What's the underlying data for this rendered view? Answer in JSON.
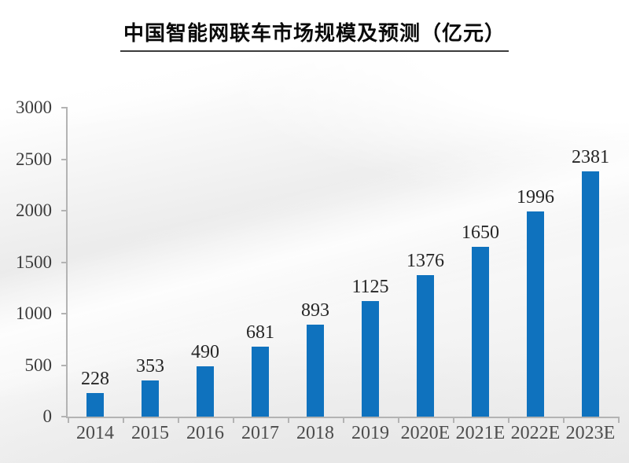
{
  "title": "中国智能网联车市场规模及预测（亿元）",
  "chart_data": {
    "type": "bar",
    "title": "中国智能网联车市场规模及预测（亿元）",
    "categories": [
      "2014",
      "2015",
      "2016",
      "2017",
      "2018",
      "2019",
      "2020E",
      "2021E",
      "2022E",
      "2023E"
    ],
    "values": [
      228,
      353,
      490,
      681,
      893,
      1125,
      1376,
      1650,
      1996,
      2381
    ],
    "xlabel": "",
    "ylabel": "",
    "ylim": [
      0,
      3000
    ],
    "yticks": [
      0,
      500,
      1000,
      1500,
      2000,
      2500,
      3000
    ],
    "grid": false,
    "legend": false,
    "data_labels": true,
    "bar_color": "#0F72BE",
    "axis_line_color": "#b3b3b3",
    "label_color": "#262626",
    "tick_label_color": "#4c4c4c"
  }
}
